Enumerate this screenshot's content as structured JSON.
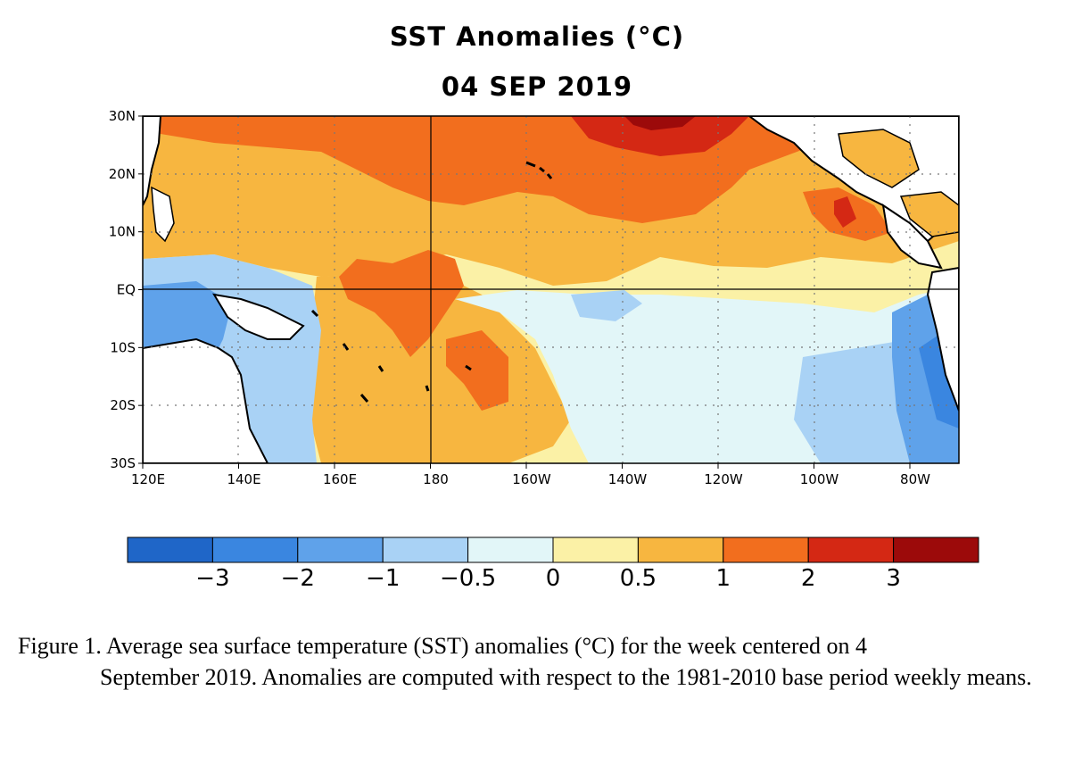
{
  "title": "SST Anomalies (°C)",
  "date": "04 SEP 2019",
  "lat_labels": [
    "30N",
    "20N",
    "10N",
    "EQ",
    "10S",
    "20S",
    "30S"
  ],
  "lon_labels": [
    "120E",
    "140E",
    "160E",
    "180",
    "160W",
    "140W",
    "120W",
    "100W",
    "80W"
  ],
  "colorbar": {
    "colors": [
      "#1f66c8",
      "#3a86e0",
      "#5fa2ea",
      "#a9d2f5",
      "#e2f6f8",
      "#fbf1a6",
      "#f7b640",
      "#f26e1e",
      "#d42814",
      "#9c0a0a"
    ],
    "tick_labels": [
      "−3",
      "−2",
      "−1",
      "−0.5",
      "0",
      "0.5",
      "1",
      "2",
      "3"
    ]
  },
  "caption": {
    "line1": "Figure 1. Average sea surface temperature (SST) anomalies (°C) for the week centered on 4",
    "rest": "September 2019.  Anomalies are computed with respect to the 1981-2010 base period weekly means."
  }
}
